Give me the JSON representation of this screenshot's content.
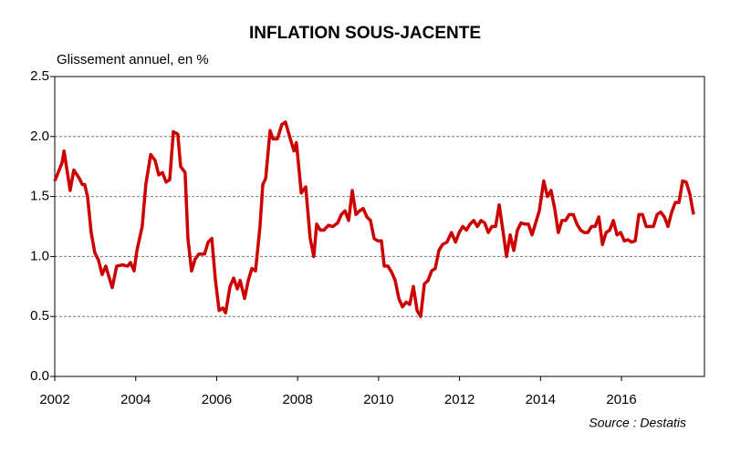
{
  "chart_data": {
    "type": "line",
    "title": "INFLATION SOUS-JACENTE",
    "y_label": "Glissement annuel, en %",
    "source": "Source :  Destatis",
    "xlim": [
      2002,
      2018.05
    ],
    "xticks": [
      2002,
      2004,
      2006,
      2008,
      2010,
      2012,
      2014,
      2016
    ],
    "ylim": [
      0,
      2.5
    ],
    "yticks": [
      {
        "value": 0,
        "label": "0.0"
      },
      {
        "value": 0.5,
        "label": "0.5"
      },
      {
        "value": 1,
        "label": "1.0"
      },
      {
        "value": 1.5,
        "label": "1.5"
      },
      {
        "value": 2,
        "label": "2.0"
      },
      {
        "value": 2.5,
        "label": "2.5"
      }
    ],
    "grid": true,
    "x": [
      2002.0,
      2002.18,
      2002.23,
      2002.38,
      2002.47,
      2002.61,
      2002.68,
      2002.74,
      2002.81,
      2002.9,
      2002.99,
      2003.08,
      2003.17,
      2003.26,
      2003.42,
      2003.53,
      2003.67,
      2003.8,
      2003.87,
      2003.96,
      2004.03,
      2004.16,
      2004.25,
      2004.37,
      2004.48,
      2004.57,
      2004.66,
      2004.75,
      2004.84,
      2004.93,
      2005.04,
      2005.11,
      2005.22,
      2005.29,
      2005.38,
      2005.47,
      2005.56,
      2005.7,
      2005.79,
      2005.88,
      2005.97,
      2006.06,
      2006.15,
      2006.22,
      2006.33,
      2006.42,
      2006.51,
      2006.58,
      2006.69,
      2006.78,
      2006.87,
      2006.96,
      2007.07,
      2007.14,
      2007.21,
      2007.32,
      2007.39,
      2007.5,
      2007.61,
      2007.7,
      2007.82,
      2007.91,
      2007.97,
      2008.09,
      2008.2,
      2008.31,
      2008.4,
      2008.47,
      2008.56,
      2008.65,
      2008.76,
      2008.87,
      2008.99,
      2009.08,
      2009.17,
      2009.26,
      2009.35,
      2009.44,
      2009.53,
      2009.62,
      2009.71,
      2009.8,
      2009.89,
      2009.98,
      2010.07,
      2010.14,
      2010.23,
      2010.32,
      2010.41,
      2010.5,
      2010.59,
      2010.68,
      2010.77,
      2010.86,
      2010.95,
      2011.04,
      2011.13,
      2011.22,
      2011.31,
      2011.4,
      2011.49,
      2011.58,
      2011.69,
      2011.8,
      2011.9,
      2011.99,
      2012.08,
      2012.17,
      2012.26,
      2012.35,
      2012.44,
      2012.53,
      2012.62,
      2012.71,
      2012.8,
      2012.89,
      2012.98,
      2013.07,
      2013.16,
      2013.25,
      2013.34,
      2013.43,
      2013.52,
      2013.61,
      2013.7,
      2013.79,
      2013.88,
      2013.97,
      2014.08,
      2014.17,
      2014.26,
      2014.35,
      2014.44,
      2014.53,
      2014.62,
      2014.71,
      2014.81,
      2014.9,
      2014.99,
      2015.08,
      2015.17,
      2015.26,
      2015.35,
      2015.44,
      2015.53,
      2015.62,
      2015.71,
      2015.8,
      2015.89,
      2015.98,
      2016.07,
      2016.16,
      2016.25,
      2016.34,
      2016.43,
      2016.52,
      2016.61,
      2016.7,
      2016.79,
      2016.88,
      2016.97,
      2017.06,
      2017.15,
      2017.24,
      2017.33,
      2017.42,
      2017.51,
      2017.6,
      2017.69,
      2017.78
    ],
    "series": [
      {
        "color": "#cc0000",
        "values": [
          1.63,
          1.78,
          1.88,
          1.55,
          1.72,
          1.65,
          1.6,
          1.6,
          1.5,
          1.2,
          1.03,
          0.97,
          0.85,
          0.92,
          0.74,
          0.92,
          0.93,
          0.92,
          0.95,
          0.88,
          1.05,
          1.25,
          1.6,
          1.85,
          1.8,
          1.68,
          1.7,
          1.62,
          1.64,
          2.04,
          2.02,
          1.75,
          1.7,
          1.15,
          0.88,
          0.98,
          1.02,
          1.02,
          1.12,
          1.15,
          0.8,
          0.55,
          0.57,
          0.53,
          0.75,
          0.82,
          0.73,
          0.8,
          0.65,
          0.8,
          0.9,
          0.88,
          1.25,
          1.6,
          1.65,
          2.05,
          1.98,
          1.98,
          2.1,
          2.12,
          1.98,
          1.88,
          1.95,
          1.53,
          1.58,
          1.15,
          1.0,
          1.27,
          1.22,
          1.22,
          1.26,
          1.25,
          1.28,
          1.35,
          1.38,
          1.3,
          1.55,
          1.35,
          1.38,
          1.4,
          1.33,
          1.3,
          1.15,
          1.13,
          1.13,
          0.92,
          0.92,
          0.87,
          0.8,
          0.65,
          0.58,
          0.62,
          0.6,
          0.75,
          0.55,
          0.5,
          0.77,
          0.8,
          0.88,
          0.9,
          1.05,
          1.1,
          1.12,
          1.2,
          1.12,
          1.2,
          1.25,
          1.22,
          1.27,
          1.3,
          1.25,
          1.3,
          1.28,
          1.2,
          1.25,
          1.25,
          1.43,
          1.22,
          1.0,
          1.18,
          1.05,
          1.22,
          1.28,
          1.27,
          1.27,
          1.18,
          1.28,
          1.38,
          1.63,
          1.5,
          1.55,
          1.4,
          1.2,
          1.3,
          1.3,
          1.35,
          1.35,
          1.27,
          1.22,
          1.2,
          1.2,
          1.25,
          1.25,
          1.33,
          1.1,
          1.2,
          1.22,
          1.3,
          1.18,
          1.2,
          1.13,
          1.14,
          1.12,
          1.13,
          1.35,
          1.35,
          1.25,
          1.25,
          1.25,
          1.35,
          1.37,
          1.33,
          1.25,
          1.37,
          1.45,
          1.45,
          1.63,
          1.62,
          1.52,
          1.35
        ]
      }
    ]
  }
}
